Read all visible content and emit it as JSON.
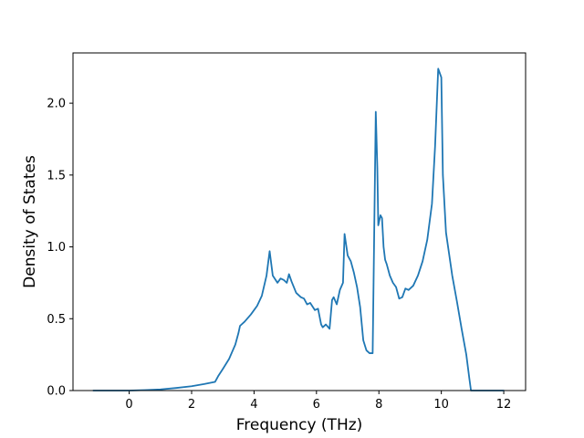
{
  "chart_data": {
    "type": "line",
    "title": "",
    "xlabel": "Frequency (THz)",
    "ylabel": "Density of States",
    "xlim": [
      -1.8,
      12.7
    ],
    "ylim": [
      0,
      2.35
    ],
    "grid": false,
    "x_ticks": [
      {
        "value": 0,
        "label": "0"
      },
      {
        "value": 2,
        "label": "2"
      },
      {
        "value": 4,
        "label": "4"
      },
      {
        "value": 6,
        "label": "6"
      },
      {
        "value": 8,
        "label": "8"
      },
      {
        "value": 10,
        "label": "10"
      },
      {
        "value": 12,
        "label": "12"
      }
    ],
    "y_ticks": [
      {
        "value": 0.0,
        "label": "0.0"
      },
      {
        "value": 0.5,
        "label": "0.5"
      },
      {
        "value": 1.0,
        "label": "1.0"
      },
      {
        "value": 1.5,
        "label": "1.5"
      },
      {
        "value": 2.0,
        "label": "2.0"
      }
    ],
    "series": [
      {
        "color": "#1f77b4",
        "x": [
          -1.15,
          0,
          0.5,
          1.0,
          1.5,
          2.0,
          2.4,
          2.75,
          2.85,
          3.0,
          3.2,
          3.4,
          3.5,
          3.55,
          3.7,
          3.9,
          4.1,
          4.25,
          4.4,
          4.5,
          4.6,
          4.75,
          4.85,
          4.95,
          5.05,
          5.12,
          5.2,
          5.35,
          5.5,
          5.6,
          5.7,
          5.8,
          5.95,
          6.05,
          6.15,
          6.2,
          6.25,
          6.3,
          6.42,
          6.5,
          6.55,
          6.65,
          6.75,
          6.85,
          6.9,
          7.0,
          7.1,
          7.2,
          7.3,
          7.4,
          7.5,
          7.6,
          7.7,
          7.8,
          7.9,
          7.95,
          7.98,
          8.05,
          8.1,
          8.15,
          8.2,
          8.25,
          8.35,
          8.45,
          8.55,
          8.65,
          8.75,
          8.85,
          8.95,
          9.1,
          9.25,
          9.4,
          9.55,
          9.7,
          9.8,
          9.9,
          10.0,
          10.05,
          10.15,
          10.25,
          10.35,
          10.5,
          10.65,
          10.8,
          10.9,
          10.95,
          11.0,
          11.5,
          12.0
        ],
        "y": [
          0.0,
          0.0,
          0.003,
          0.008,
          0.018,
          0.03,
          0.045,
          0.06,
          0.1,
          0.15,
          0.22,
          0.32,
          0.4,
          0.45,
          0.48,
          0.53,
          0.59,
          0.66,
          0.8,
          0.97,
          0.8,
          0.75,
          0.78,
          0.77,
          0.75,
          0.81,
          0.76,
          0.68,
          0.65,
          0.64,
          0.6,
          0.61,
          0.56,
          0.57,
          0.46,
          0.44,
          0.45,
          0.46,
          0.43,
          0.63,
          0.65,
          0.6,
          0.7,
          0.75,
          1.09,
          0.94,
          0.9,
          0.82,
          0.72,
          0.58,
          0.35,
          0.28,
          0.26,
          0.26,
          1.94,
          1.55,
          1.15,
          1.22,
          1.2,
          1.0,
          0.91,
          0.88,
          0.8,
          0.75,
          0.72,
          0.64,
          0.65,
          0.71,
          0.7,
          0.73,
          0.8,
          0.9,
          1.05,
          1.3,
          1.7,
          2.24,
          2.18,
          1.5,
          1.1,
          0.95,
          0.8,
          0.62,
          0.43,
          0.25,
          0.08,
          0.0,
          0.0,
          0.0,
          0.0
        ]
      }
    ]
  }
}
